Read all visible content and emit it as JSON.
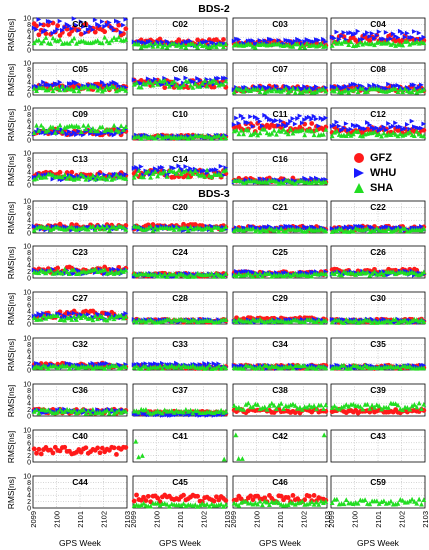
{
  "chart_data": {
    "type": "scatter",
    "sections": [
      {
        "title": "BDS-2",
        "panels": [
          "C01",
          "C02",
          "C03",
          "C04",
          "C05",
          "C06",
          "C07",
          "C08",
          "C09",
          "C10",
          "C11",
          "C12",
          "C13",
          "C14",
          "C16"
        ]
      },
      {
        "title": "BDS-3",
        "panels": [
          "C19",
          "C20",
          "C21",
          "C22",
          "C23",
          "C24",
          "C25",
          "C26",
          "C27",
          "C28",
          "C29",
          "C30",
          "C32",
          "C33",
          "C34",
          "C35",
          "C36",
          "C37",
          "C38",
          "C39",
          "C40",
          "C41",
          "C42",
          "C43",
          "C44",
          "C45",
          "C46",
          "C59"
        ]
      }
    ],
    "ylabel": "RMS[ns]",
    "xlabel": "GPS Week",
    "xticks": [
      "2099",
      "2100",
      "2101",
      "2102",
      "2103"
    ],
    "xlim": [
      2099,
      2103
    ],
    "yticks": [
      "0",
      "2",
      "4",
      "6",
      "8",
      "10"
    ],
    "ylim": [
      0,
      10
    ],
    "grid": true,
    "legend": {
      "position": "right of C16",
      "entries": [
        {
          "name": "GFZ",
          "color": "#ff1a1a",
          "marker": "circle"
        },
        {
          "name": "WHU",
          "color": "#1a1aff",
          "marker": "triangle-right"
        },
        {
          "name": "SHA",
          "color": "#22dd22",
          "marker": "triangle-up"
        }
      ]
    },
    "series_note": "approximate mean RMS per panel and center (ns)",
    "levels": {
      "C01": {
        "GFZ": 6.5,
        "WHU": 7.5,
        "SHA": 3.0
      },
      "C02": {
        "GFZ": 2.5,
        "WHU": 2.0,
        "SHA": 1.5
      },
      "C03": {
        "GFZ": 2.0,
        "WHU": 2.5,
        "SHA": 1.5
      },
      "C04": {
        "GFZ": 3.5,
        "WHU": 4.5,
        "SHA": 2.0
      },
      "C05": {
        "GFZ": 2.5,
        "WHU": 3.0,
        "SHA": 2.0
      },
      "C06": {
        "GFZ": 3.5,
        "WHU": 4.0,
        "SHA": 3.5
      },
      "C07": {
        "GFZ": 2.0,
        "WHU": 2.0,
        "SHA": 1.5
      },
      "C08": {
        "GFZ": 2.0,
        "WHU": 2.5,
        "SHA": 1.5
      },
      "C09": {
        "GFZ": 2.5,
        "WHU": 2.5,
        "SHA": 3.5
      },
      "C10": {
        "GFZ": 1.0,
        "WHU": 1.0,
        "SHA": 1.0
      },
      "C11": {
        "GFZ": 4.0,
        "WHU": 6.0,
        "SHA": 2.5
      },
      "C12": {
        "GFZ": 3.0,
        "WHU": 4.5,
        "SHA": 2.0
      },
      "C13": {
        "GFZ": 3.0,
        "WHU": 2.5,
        "SHA": 2.5
      },
      "C14": {
        "GFZ": 3.5,
        "WHU": 4.5,
        "SHA": 3.5
      },
      "C16": {
        "GFZ": 1.5,
        "WHU": 1.5,
        "SHA": 1.0
      },
      "C19": {
        "GFZ": 2.0,
        "WHU": 1.5,
        "SHA": 1.5
      },
      "C20": {
        "GFZ": 2.0,
        "WHU": 1.5,
        "SHA": 1.5
      },
      "C21": {
        "GFZ": 1.5,
        "WHU": 1.5,
        "SHA": 1.0
      },
      "C22": {
        "GFZ": 1.5,
        "WHU": 1.5,
        "SHA": 1.0
      },
      "C23": {
        "GFZ": 2.5,
        "WHU": 2.0,
        "SHA": 2.0
      },
      "C24": {
        "GFZ": 1.0,
        "WHU": 1.0,
        "SHA": 1.0
      },
      "C25": {
        "GFZ": 1.5,
        "WHU": 1.5,
        "SHA": 1.0
      },
      "C26": {
        "GFZ": 2.0,
        "WHU": 1.5,
        "SHA": 1.5
      },
      "C27": {
        "GFZ": 3.0,
        "WHU": 2.5,
        "SHA": 2.0
      },
      "C28": {
        "GFZ": 1.0,
        "WHU": 1.0,
        "SHA": 1.0
      },
      "C29": {
        "GFZ": 1.5,
        "WHU": 1.0,
        "SHA": 1.0
      },
      "C30": {
        "GFZ": 1.0,
        "WHU": 1.0,
        "SHA": 1.0
      },
      "C32": {
        "GFZ": 1.5,
        "WHU": 1.5,
        "SHA": 1.0
      },
      "C33": {
        "GFZ": 1.0,
        "WHU": 1.5,
        "SHA": 1.0
      },
      "C34": {
        "GFZ": 1.0,
        "WHU": 1.0,
        "SHA": 1.0
      },
      "C35": {
        "GFZ": 1.0,
        "WHU": 1.0,
        "SHA": 1.0
      },
      "C36": {
        "GFZ": 1.5,
        "WHU": 1.5,
        "SHA": 1.5
      },
      "C37": {
        "GFZ": 1.0,
        "WHU": 0.5,
        "SHA": 1.5
      },
      "C38": {
        "GFZ": 1.5,
        "WHU": null,
        "SHA": 3.0
      },
      "C39": {
        "GFZ": 1.5,
        "WHU": null,
        "SHA": 3.0
      },
      "C40": {
        "GFZ": 3.5,
        "WHU": null,
        "SHA": null
      },
      "C41": {
        "GFZ": null,
        "WHU": null,
        "SHA": 1.5
      },
      "C42": {
        "GFZ": null,
        "WHU": null,
        "SHA": 1.0
      },
      "C43": {
        "GFZ": null,
        "WHU": null,
        "SHA": null
      },
      "C44": {
        "GFZ": null,
        "WHU": null,
        "SHA": null
      },
      "C45": {
        "GFZ": 3.0,
        "WHU": null,
        "SHA": 1.0
      },
      "C46": {
        "GFZ": 3.0,
        "WHU": null,
        "SHA": 1.5
      },
      "C59": {
        "GFZ": null,
        "WHU": null,
        "SHA": 2.0
      }
    }
  }
}
